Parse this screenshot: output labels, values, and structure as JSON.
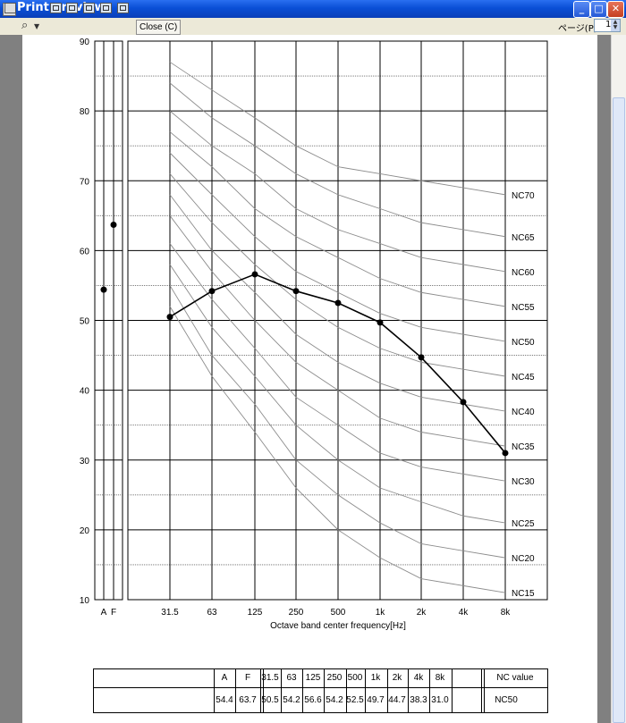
{
  "window": {
    "title": "Print preview",
    "minimize_glyph": "_",
    "maximize_glyph": "□",
    "close_glyph": "✕"
  },
  "toolbar": {
    "close_label": "Close (C)",
    "page_label": "ページ(P)",
    "page_value": "1",
    "icons": [
      "printer-icon",
      "zoom-icon",
      "one-page-icon",
      "two-pages-icon",
      "three-pages-icon",
      "four-pages-icon",
      "six-pages-icon"
    ]
  },
  "chart_data": {
    "type": "line",
    "xlabel": "Octave band center frequency[Hz]",
    "categories": [
      "31.5",
      "63",
      "125",
      "250",
      "500",
      "1k",
      "2k",
      "4k",
      "8k"
    ],
    "ylim": [
      10,
      90
    ],
    "yticks": [
      10,
      20,
      30,
      40,
      50,
      60,
      70,
      80,
      90
    ],
    "grid": true,
    "series": [
      {
        "values": [
          50.5,
          54.2,
          56.6,
          54.2,
          52.5,
          49.7,
          44.7,
          38.3,
          31.0
        ]
      }
    ],
    "overall": {
      "categories": [
        "A",
        "F"
      ],
      "values": [
        54.4,
        63.7
      ]
    },
    "nc_curves": [
      {
        "name": "NC70",
        "values": [
          87,
          83,
          79,
          75,
          72,
          71,
          70,
          69,
          68
        ]
      },
      {
        "name": "NC65",
        "values": [
          84,
          79,
          75,
          71,
          68,
          66,
          64,
          63,
          62
        ]
      },
      {
        "name": "NC60",
        "values": [
          80,
          75,
          71,
          66,
          63,
          61,
          59,
          58,
          57
        ]
      },
      {
        "name": "NC55",
        "values": [
          77,
          72,
          66,
          62,
          59,
          56,
          54,
          53,
          52
        ]
      },
      {
        "name": "NC50",
        "values": [
          74,
          68,
          62,
          57,
          54,
          51,
          49,
          48,
          47
        ]
      },
      {
        "name": "NC45",
        "values": [
          71,
          64,
          58,
          53,
          49,
          46,
          44,
          43,
          42
        ]
      },
      {
        "name": "NC40",
        "values": [
          68,
          60,
          54,
          48,
          44,
          41,
          39,
          38,
          37
        ]
      },
      {
        "name": "NC35",
        "values": [
          65,
          57,
          50,
          44,
          40,
          36,
          34,
          33,
          32
        ]
      },
      {
        "name": "NC30",
        "values": [
          61,
          53,
          46,
          39,
          35,
          31,
          29,
          28,
          27
        ]
      },
      {
        "name": "NC25",
        "values": [
          58,
          49,
          42,
          35,
          30,
          26,
          24,
          22,
          21
        ]
      },
      {
        "name": "NC20",
        "values": [
          55,
          45,
          38,
          30,
          25,
          21,
          18,
          17,
          16
        ]
      },
      {
        "name": "NC15",
        "values": [
          52,
          42,
          34,
          26,
          20,
          16,
          13,
          12,
          11
        ]
      }
    ]
  },
  "summary_table": {
    "headers": [
      "A",
      "F",
      "31.5",
      "63",
      "125",
      "250",
      "500",
      "1k",
      "2k",
      "4k",
      "8k"
    ],
    "values": [
      "54.4",
      "63.7",
      "50.5",
      "54.2",
      "56.6",
      "54.2",
      "52.5",
      "49.7",
      "44.7",
      "38.3",
      "31.0"
    ],
    "nc_header": "NC value",
    "nc_value": "NC50"
  }
}
